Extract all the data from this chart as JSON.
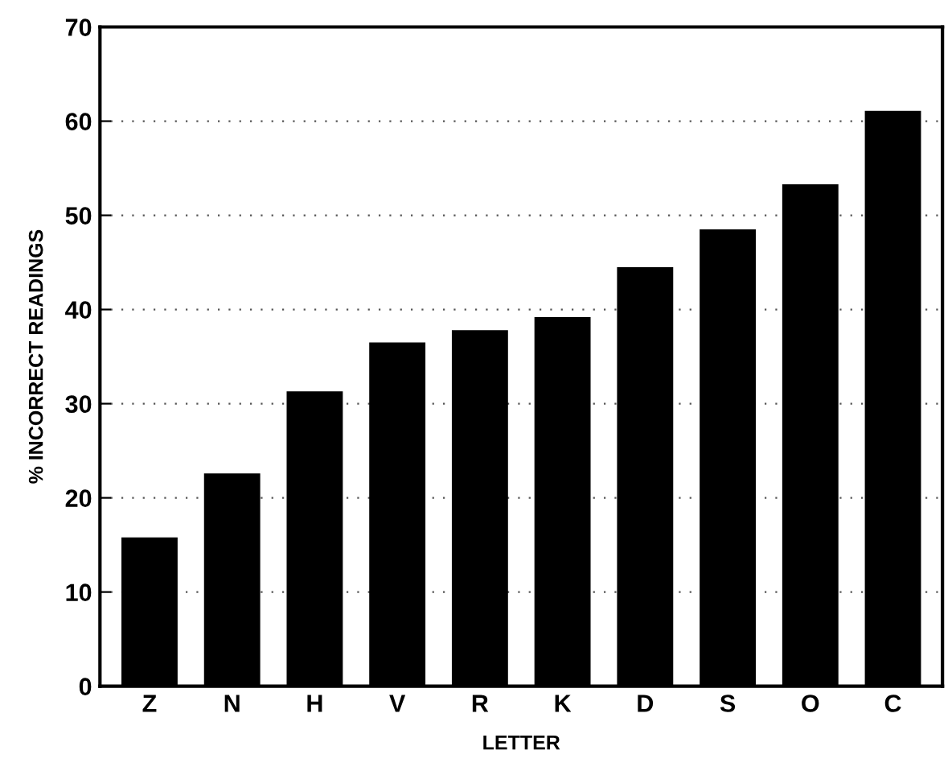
{
  "chart_data": {
    "type": "bar",
    "xlabel": "LETTER",
    "ylabel": "% INCORRECT READINGS",
    "categories": [
      "Z",
      "N",
      "H",
      "V",
      "R",
      "K",
      "D",
      "S",
      "O",
      "C"
    ],
    "values": [
      15.8,
      22.6,
      31.3,
      36.5,
      37.8,
      39.2,
      44.5,
      48.5,
      53.3,
      61.1
    ],
    "color": "#000000",
    "ylim": [
      0,
      70
    ],
    "yticks": [
      0,
      10,
      20,
      30,
      40,
      50,
      60,
      70
    ],
    "grid": "y"
  }
}
